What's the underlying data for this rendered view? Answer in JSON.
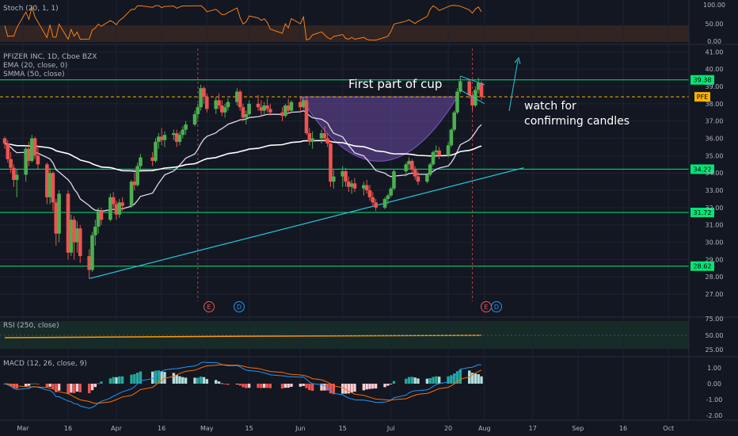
{
  "symbol": "PFE",
  "colors": {
    "background": "#131722",
    "up": "#26a69a",
    "up_candle": "#4caf50",
    "down": "#ef5350",
    "stoch": "#f57f17",
    "rsi": "#ff9800",
    "ema": "#ffffff",
    "smma": "#ffffff",
    "hline": "#00e676",
    "trend": "#26c6da",
    "current": "#ffb300",
    "cup": "#7e57c2",
    "macd": "#2196f3",
    "signal": "#ff6d00"
  },
  "stoch": {
    "label": "Stoch (20, 1, 1)",
    "ticks": [
      "100.00",
      "50.00",
      "0.00"
    ]
  },
  "main": {
    "title": "PFIZER INC, 1D, Cboe BZX",
    "ema_label": "EMA (20, close, 0)",
    "smma_label": "SMMA (50, close)",
    "price_ticks": [
      "41.00",
      "40.00",
      "39.00",
      "38.00",
      "37.00",
      "36.00",
      "35.00",
      "34.00",
      "33.00",
      "32.00",
      "31.00",
      "30.00",
      "29.00",
      "28.00",
      "27.00"
    ],
    "annotation_cup": "First part of cup",
    "annotation_watch_1": "watch for",
    "annotation_watch_2": "confirming candles",
    "event_earnings": "E",
    "event_dividend": "D"
  },
  "rsi": {
    "label": "RSI (250, close)",
    "ticks": [
      "75.00",
      "50.00",
      "25.00"
    ]
  },
  "macd": {
    "label": "MACD (12, 26, close, 9)",
    "ticks": [
      "1.00",
      "0.00",
      "-1.00",
      "-2.00"
    ]
  },
  "x_labels": [
    "Mar",
    "16",
    "Apr",
    "16",
    "May",
    "15",
    "Jun",
    "15",
    "Jul",
    "20",
    "Aug",
    "17",
    "Sep",
    "16",
    "Oct"
  ],
  "chart_data": {
    "type": "candlestick",
    "title": "PFIZER INC, 1D, Cboe BZX",
    "ylim": [
      26.5,
      41.2
    ],
    "horizontal_levels": [
      39.38,
      34.22,
      31.72,
      28.62
    ],
    "level_labels": [
      "39.38",
      "34.22",
      "31.72",
      "28.62"
    ],
    "current_price": 38.4,
    "current_label": "PFE",
    "trendline": {
      "from": [
        "2020-03-23",
        27.9
      ],
      "to": [
        "2020-08-14",
        34.3
      ]
    },
    "candles": [
      [
        "2020-02-24",
        36.0,
        36.1,
        35.4,
        35.7
      ],
      [
        "2020-02-25",
        35.7,
        35.9,
        34.6,
        34.8
      ],
      [
        "2020-02-26",
        34.8,
        35.2,
        34.0,
        34.3
      ],
      [
        "2020-02-27",
        34.3,
        34.5,
        33.2,
        33.6
      ],
      [
        "2020-02-28",
        33.6,
        34.2,
        32.6,
        33.9
      ],
      [
        "2020-03-02",
        33.9,
        35.6,
        33.5,
        35.4
      ],
      [
        "2020-03-03",
        35.4,
        35.8,
        34.4,
        34.7
      ],
      [
        "2020-03-04",
        34.7,
        36.2,
        34.6,
        36.0
      ],
      [
        "2020-03-05",
        36.0,
        36.1,
        34.8,
        35.0
      ],
      [
        "2020-03-06",
        35.0,
        35.6,
        34.2,
        34.5
      ],
      [
        "2020-03-09",
        34.5,
        34.6,
        32.2,
        32.6
      ],
      [
        "2020-03-10",
        32.6,
        34.3,
        32.2,
        34.0
      ],
      [
        "2020-03-11",
        34.0,
        34.1,
        31.8,
        32.3
      ],
      [
        "2020-03-12",
        32.3,
        32.5,
        29.8,
        30.5
      ],
      [
        "2020-03-13",
        30.5,
        33.0,
        30.0,
        32.8
      ],
      [
        "2020-03-16",
        32.8,
        33.0,
        29.0,
        29.4
      ],
      [
        "2020-03-17",
        29.4,
        31.6,
        29.2,
        31.3
      ],
      [
        "2020-03-18",
        31.3,
        31.5,
        29.0,
        30.0
      ],
      [
        "2020-03-19",
        30.0,
        31.2,
        29.4,
        30.8
      ],
      [
        "2020-03-20",
        30.8,
        31.0,
        28.8,
        29.2
      ],
      [
        "2020-03-23",
        29.2,
        29.6,
        27.9,
        28.4
      ],
      [
        "2020-03-24",
        28.4,
        30.6,
        28.3,
        30.4
      ],
      [
        "2020-03-25",
        30.4,
        31.3,
        29.8,
        30.9
      ],
      [
        "2020-03-26",
        30.9,
        32.0,
        30.5,
        31.8
      ],
      [
        "2020-03-27",
        31.8,
        32.0,
        31.0,
        31.3
      ],
      [
        "2020-03-30",
        31.3,
        32.8,
        31.2,
        32.6
      ],
      [
        "2020-03-31",
        32.6,
        32.9,
        32.0,
        32.2
      ],
      [
        "2020-04-01",
        32.2,
        32.4,
        31.3,
        31.6
      ],
      [
        "2020-04-02",
        31.6,
        32.5,
        31.4,
        32.3
      ],
      [
        "2020-04-03",
        32.3,
        32.6,
        31.8,
        32.1
      ],
      [
        "2020-04-06",
        32.1,
        33.6,
        32.0,
        33.5
      ],
      [
        "2020-04-07",
        33.5,
        34.0,
        33.0,
        33.3
      ],
      [
        "2020-04-08",
        33.3,
        34.6,
        33.2,
        34.4
      ],
      [
        "2020-04-09",
        34.4,
        35.1,
        34.2,
        34.9
      ],
      [
        "2020-04-13",
        34.9,
        35.2,
        34.4,
        34.7
      ],
      [
        "2020-04-14",
        34.7,
        36.0,
        34.6,
        35.8
      ],
      [
        "2020-04-15",
        35.8,
        36.3,
        35.4,
        36.1
      ],
      [
        "2020-04-16",
        36.1,
        36.6,
        35.6,
        35.9
      ],
      [
        "2020-04-17",
        35.9,
        36.4,
        35.5,
        36.2
      ],
      [
        "2020-04-20",
        36.2,
        36.5,
        35.9,
        36.3
      ],
      [
        "2020-04-21",
        36.3,
        36.5,
        35.5,
        35.8
      ],
      [
        "2020-04-22",
        35.8,
        36.4,
        35.6,
        36.2
      ],
      [
        "2020-04-23",
        36.2,
        36.7,
        36.0,
        36.5
      ],
      [
        "2020-04-24",
        36.5,
        37.0,
        36.2,
        36.8
      ],
      [
        "2020-04-27",
        36.8,
        37.6,
        36.7,
        37.4
      ],
      [
        "2020-04-28",
        37.4,
        38.0,
        37.1,
        37.8
      ],
      [
        "2020-04-29",
        37.8,
        39.1,
        37.6,
        38.9
      ],
      [
        "2020-04-30",
        38.9,
        39.0,
        38.0,
        38.4
      ],
      [
        "2020-05-01",
        38.4,
        38.6,
        37.5,
        37.7
      ],
      [
        "2020-05-04",
        37.7,
        38.4,
        37.4,
        38.2
      ],
      [
        "2020-05-05",
        38.2,
        38.6,
        37.7,
        37.9
      ],
      [
        "2020-05-06",
        37.9,
        38.2,
        37.3,
        37.5
      ],
      [
        "2020-05-07",
        37.5,
        38.0,
        37.2,
        37.8
      ],
      [
        "2020-05-08",
        37.8,
        38.3,
        37.6,
        38.1
      ],
      [
        "2020-05-11",
        38.1,
        38.9,
        37.9,
        38.7
      ],
      [
        "2020-05-12",
        38.7,
        38.8,
        37.6,
        37.8
      ],
      [
        "2020-05-13",
        37.8,
        38.0,
        37.0,
        37.2
      ],
      [
        "2020-05-14",
        37.2,
        37.6,
        36.8,
        37.4
      ],
      [
        "2020-05-15",
        37.4,
        38.2,
        37.3,
        38.0
      ],
      [
        "2020-05-18",
        38.0,
        38.5,
        37.6,
        37.8
      ],
      [
        "2020-05-19",
        37.8,
        38.2,
        37.3,
        37.6
      ],
      [
        "2020-05-20",
        37.6,
        38.1,
        37.4,
        37.9
      ],
      [
        "2020-05-21",
        37.9,
        38.3,
        37.5,
        37.7
      ],
      [
        "2020-05-22",
        37.7,
        38.0,
        37.3,
        37.5
      ],
      [
        "2020-05-26",
        37.5,
        37.8,
        37.0,
        37.3
      ],
      [
        "2020-05-27",
        37.3,
        38.0,
        37.2,
        37.9
      ],
      [
        "2020-05-28",
        37.9,
        38.3,
        37.4,
        37.6
      ],
      [
        "2020-05-29",
        37.6,
        38.2,
        37.5,
        38.1
      ],
      [
        "2020-06-01",
        38.1,
        38.4,
        37.6,
        37.8
      ],
      [
        "2020-06-02",
        37.8,
        38.4,
        37.7,
        38.2
      ],
      [
        "2020-06-03",
        38.2,
        38.4,
        36.2,
        36.3
      ],
      [
        "2020-06-04",
        36.3,
        36.6,
        35.6,
        35.8
      ],
      [
        "2020-06-05",
        35.8,
        36.4,
        35.4,
        36.0
      ],
      [
        "2020-06-08",
        36.0,
        36.5,
        35.7,
        36.3
      ],
      [
        "2020-06-09",
        36.3,
        36.7,
        35.8,
        36.0
      ],
      [
        "2020-06-10",
        36.0,
        36.3,
        35.5,
        35.7
      ],
      [
        "2020-06-11",
        35.7,
        35.9,
        33.2,
        33.5
      ],
      [
        "2020-06-12",
        33.5,
        34.2,
        33.1,
        33.8
      ],
      [
        "2020-06-15",
        33.8,
        34.4,
        33.2,
        34.1
      ],
      [
        "2020-06-16",
        34.1,
        34.3,
        33.2,
        33.5
      ],
      [
        "2020-06-17",
        33.5,
        33.8,
        32.9,
        33.2
      ],
      [
        "2020-06-18",
        33.2,
        33.6,
        32.8,
        33.4
      ],
      [
        "2020-06-19",
        33.4,
        33.7,
        32.9,
        33.1
      ],
      [
        "2020-06-22",
        33.1,
        33.5,
        32.7,
        33.3
      ],
      [
        "2020-06-23",
        33.3,
        33.6,
        32.8,
        33.0
      ],
      [
        "2020-06-24",
        33.0,
        33.3,
        32.4,
        32.6
      ],
      [
        "2020-06-25",
        32.6,
        32.9,
        32.1,
        32.3
      ],
      [
        "2020-06-26",
        32.3,
        32.5,
        31.8,
        32.0
      ],
      [
        "2020-06-29",
        32.0,
        32.6,
        31.9,
        32.5
      ],
      [
        "2020-06-30",
        32.5,
        32.8,
        32.2,
        32.7
      ],
      [
        "2020-07-01",
        32.7,
        33.2,
        32.6,
        33.1
      ],
      [
        "2020-07-02",
        33.1,
        34.2,
        33.0,
        34.1
      ],
      [
        "2020-07-06",
        34.1,
        34.6,
        33.8,
        34.5
      ],
      [
        "2020-07-07",
        34.5,
        34.9,
        34.2,
        34.7
      ],
      [
        "2020-07-08",
        34.7,
        34.8,
        34.0,
        34.2
      ],
      [
        "2020-07-09",
        34.2,
        34.4,
        33.6,
        33.8
      ],
      [
        "2020-07-10",
        33.8,
        34.1,
        33.3,
        33.5
      ],
      [
        "2020-07-13",
        33.5,
        34.0,
        33.4,
        33.9
      ],
      [
        "2020-07-14",
        33.9,
        34.6,
        33.8,
        34.5
      ],
      [
        "2020-07-15",
        34.5,
        35.3,
        34.4,
        35.2
      ],
      [
        "2020-07-16",
        35.2,
        35.6,
        34.9,
        35.3
      ],
      [
        "2020-07-17",
        35.3,
        35.5,
        34.8,
        35.0
      ],
      [
        "2020-07-20",
        35.0,
        35.8,
        34.9,
        35.6
      ],
      [
        "2020-07-21",
        35.6,
        36.6,
        35.5,
        36.5
      ],
      [
        "2020-07-22",
        36.5,
        37.6,
        36.4,
        37.5
      ],
      [
        "2020-07-23",
        37.5,
        38.9,
        37.4,
        38.7
      ],
      [
        "2020-07-24",
        38.7,
        39.6,
        38.6,
        39.3
      ],
      [
        "2020-07-27",
        39.3,
        39.4,
        38.3,
        38.5
      ],
      [
        "2020-07-28",
        38.5,
        38.6,
        37.6,
        37.9
      ],
      [
        "2020-07-29",
        37.9,
        39.0,
        37.8,
        38.8
      ],
      [
        "2020-07-30",
        38.8,
        39.5,
        38.6,
        39.2
      ],
      [
        "2020-07-31",
        39.2,
        39.3,
        38.2,
        38.4
      ]
    ]
  }
}
